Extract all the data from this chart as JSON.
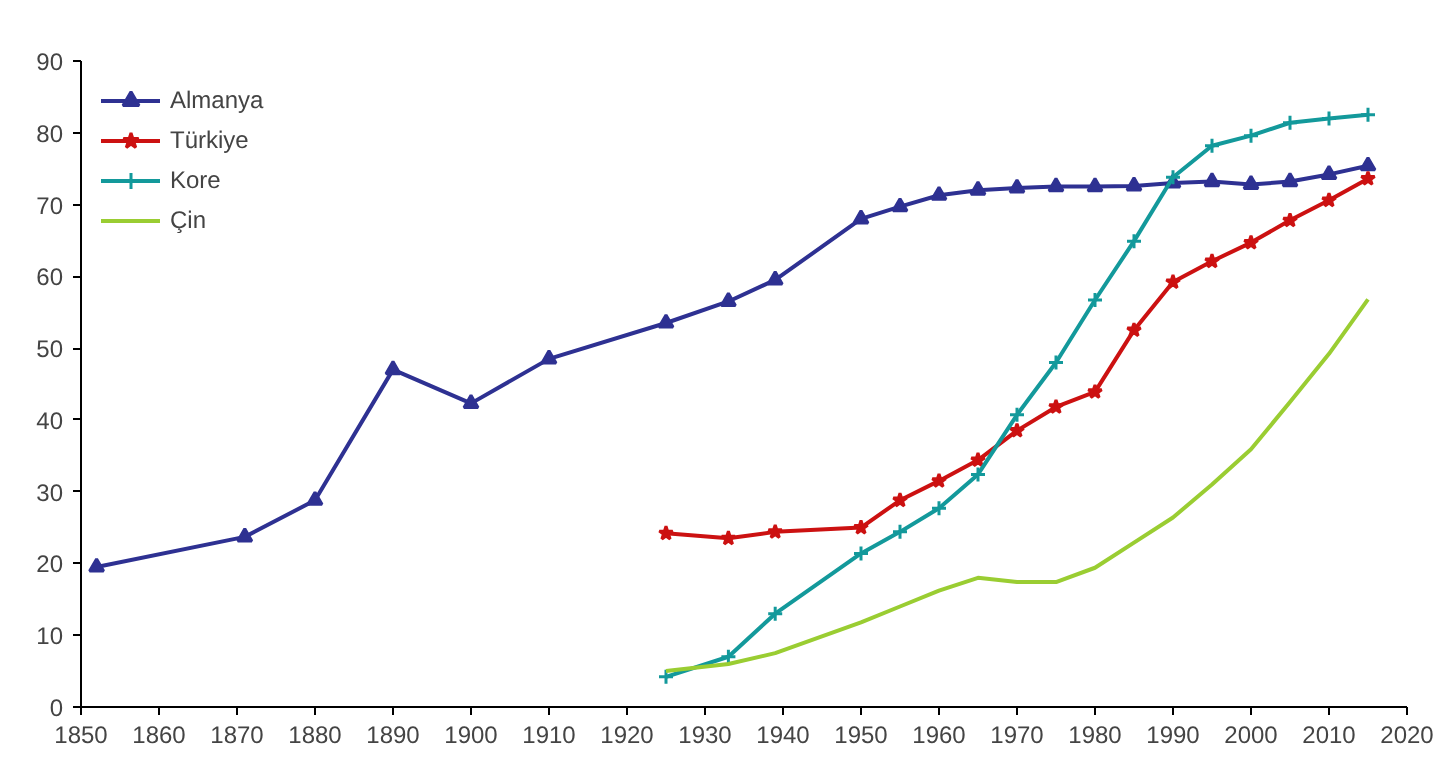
{
  "chart_data": {
    "type": "line",
    "xlim": [
      1850,
      2020
    ],
    "xticks": [
      1850,
      1860,
      1870,
      1880,
      1890,
      1900,
      1910,
      1920,
      1930,
      1940,
      1950,
      1960,
      1970,
      1980,
      1990,
      2000,
      2010,
      2020
    ],
    "ylim": [
      0,
      90
    ],
    "yticks": [
      0,
      10,
      20,
      30,
      40,
      50,
      60,
      70,
      80,
      90
    ],
    "grid": false,
    "legend": "top left",
    "line_style": "solid",
    "series": [
      {
        "name": "Almanya",
        "color": "#2e3192",
        "marker": "triangle",
        "x": [
          1852,
          1871,
          1880,
          1890,
          1900,
          1910,
          1925,
          1933,
          1939,
          1950,
          1955,
          1960,
          1965,
          1970,
          1975,
          1980,
          1985,
          1990,
          1995,
          2000,
          2005,
          2010,
          2015
        ],
        "values": [
          19.5,
          23.7,
          28.8,
          47,
          42.3,
          48.5,
          53.5,
          56.5,
          59.5,
          68,
          69.7,
          71.3,
          72,
          72.3,
          72.5,
          72.5,
          72.6,
          73,
          73.2,
          72.8,
          73.2,
          74.2,
          75.4
        ]
      },
      {
        "name": "Türkiye",
        "color": "#cc1111",
        "marker": "star",
        "x": [
          1925,
          1933,
          1939,
          1950,
          1955,
          1960,
          1965,
          1970,
          1975,
          1980,
          1985,
          1990,
          1995,
          2000,
          2005,
          2010,
          2015
        ],
        "values": [
          24.2,
          23.5,
          24.4,
          25,
          28.8,
          31.5,
          34.4,
          38.5,
          41.8,
          43.9,
          52.5,
          59.2,
          62.1,
          64.7,
          67.8,
          70.6,
          73.6
        ]
      },
      {
        "name": "Kore",
        "color": "#13999b",
        "marker": "cross",
        "x": [
          1925,
          1933,
          1939,
          1950,
          1955,
          1960,
          1965,
          1970,
          1975,
          1980,
          1985,
          1990,
          1995,
          2000,
          2005,
          2010,
          2015
        ],
        "values": [
          4.2,
          7,
          13,
          21.4,
          24.4,
          27.7,
          32.4,
          40.7,
          48,
          56.7,
          64.9,
          73.8,
          78.2,
          79.6,
          81.4,
          82,
          82.5
        ]
      },
      {
        "name": "Çin",
        "color": "#9acd32",
        "marker": "none",
        "x": [
          1925,
          1933,
          1939,
          1950,
          1955,
          1960,
          1965,
          1970,
          1975,
          1980,
          1985,
          1990,
          1995,
          2000,
          2005,
          2010,
          2015
        ],
        "values": [
          5,
          6,
          7.5,
          11.8,
          14,
          16.2,
          18,
          17.4,
          17.4,
          19.4,
          22.9,
          26.4,
          31,
          35.9,
          42.5,
          49.2,
          56.8
        ]
      }
    ]
  }
}
